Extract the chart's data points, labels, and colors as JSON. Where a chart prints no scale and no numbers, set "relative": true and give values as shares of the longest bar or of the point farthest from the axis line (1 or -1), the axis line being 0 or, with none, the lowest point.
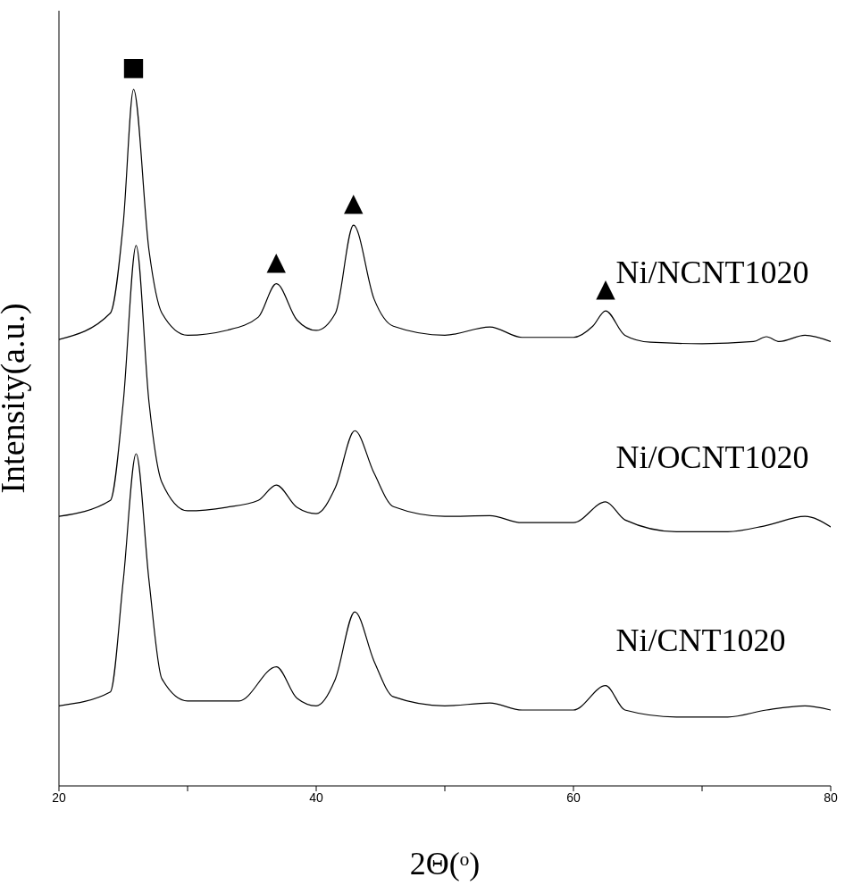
{
  "chart_data": {
    "type": "line",
    "relative": true,
    "xlabel": "2Θ(ᵒ)",
    "ylabel": "Intensity(a.u.)",
    "xlim": [
      20,
      80
    ],
    "xticks": [
      20,
      {
        "value": 30,
        "label": null
      },
      40,
      {
        "value": 50,
        "label": null
      },
      60,
      {
        "value": 70,
        "label": null
      },
      80
    ],
    "series": [
      {
        "name": "Ni/NCNT1020",
        "color": "#000000",
        "x": [
          20,
          24,
          25,
          25.8,
          27,
          28,
          30,
          33,
          35.5,
          36.9,
          38.5,
          40,
          41.5,
          42.9,
          44.5,
          46,
          50,
          53.5,
          56,
          60,
          61.5,
          62.5,
          64,
          66,
          70,
          74,
          75,
          76,
          78,
          80
        ],
        "values": [
          0.641,
          0.679,
          0.808,
          1,
          0.769,
          0.679,
          0.647,
          0.654,
          0.673,
          0.721,
          0.669,
          0.654,
          0.679,
          0.805,
          0.699,
          0.66,
          0.647,
          0.659,
          0.644,
          0.644,
          0.66,
          0.682,
          0.647,
          0.637,
          0.635,
          0.638,
          0.645,
          0.638,
          0.647,
          0.638
        ]
      },
      {
        "name": "Ni/OCNT1020",
        "color": "#000000",
        "x": [
          20,
          24,
          25,
          26,
          27,
          28,
          30,
          33,
          35.5,
          36.9,
          38.5,
          40,
          41.5,
          43,
          44.5,
          46,
          50,
          53.5,
          56,
          60,
          62.5,
          64,
          68,
          72,
          75,
          78,
          80
        ],
        "values": [
          0.387,
          0.41,
          0.551,
          0.776,
          0.551,
          0.436,
          0.395,
          0.4,
          0.41,
          0.432,
          0.4,
          0.391,
          0.429,
          0.51,
          0.449,
          0.401,
          0.387,
          0.388,
          0.378,
          0.378,
          0.408,
          0.382,
          0.365,
          0.365,
          0.374,
          0.387,
          0.372
        ]
      },
      {
        "name": "Ni/CNT1020",
        "color": "#000000",
        "x": [
          20,
          24,
          25,
          26,
          27,
          28,
          30,
          34,
          36.9,
          38.5,
          40,
          41.5,
          43,
          44.5,
          46,
          50,
          53.5,
          56,
          60,
          62.5,
          64,
          68,
          72,
          75,
          78,
          80
        ],
        "values": [
          0.115,
          0.135,
          0.295,
          0.477,
          0.295,
          0.154,
          0.122,
          0.122,
          0.171,
          0.126,
          0.115,
          0.154,
          0.25,
          0.179,
          0.128,
          0.115,
          0.119,
          0.109,
          0.109,
          0.144,
          0.109,
          0.099,
          0.099,
          0.109,
          0.115,
          0.109
        ]
      }
    ],
    "annotations": [
      {
        "text": "■",
        "x": 25.8,
        "y": 1
      },
      {
        "text": "▲",
        "x": 36.9,
        "y": 0.721
      },
      {
        "text": "▲",
        "x": 42.9,
        "y": 0.805
      },
      {
        "text": "▲",
        "x": 62.5,
        "y": 0.682
      }
    ]
  }
}
